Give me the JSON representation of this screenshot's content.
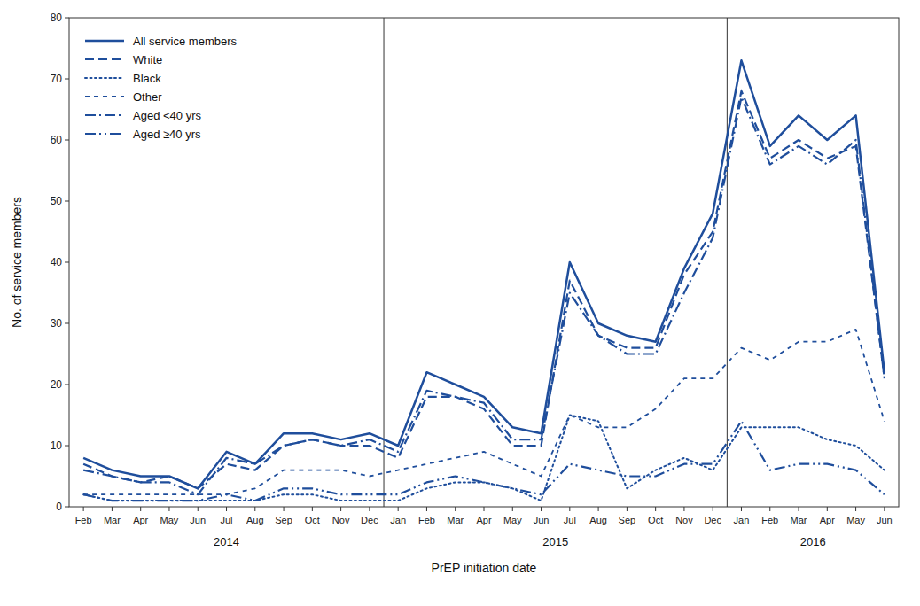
{
  "chart_data": {
    "type": "line",
    "xlabel": "PrEP initiation date",
    "ylabel": "No. of service members",
    "categories": [
      "Feb",
      "Mar",
      "Apr",
      "May",
      "Jun",
      "Jul",
      "Aug",
      "Sep",
      "Oct",
      "Nov",
      "Dec",
      "Jan",
      "Feb",
      "Mar",
      "Apr",
      "May",
      "Jun",
      "Jul",
      "Aug",
      "Sep",
      "Oct",
      "Nov",
      "Dec",
      "Jan",
      "Feb",
      "Mar",
      "Apr",
      "May",
      "Jun"
    ],
    "x_groups": [
      {
        "label": "2014",
        "count": 11
      },
      {
        "label": "2015",
        "count": 12
      },
      {
        "label": "2016",
        "count": 6
      }
    ],
    "ylim": [
      0,
      80
    ],
    "yticks": [
      0,
      10,
      20,
      30,
      40,
      50,
      60,
      70,
      80
    ],
    "grid": false,
    "legend": "upper-left",
    "color": "#1F4E9C",
    "series": [
      {
        "name": "All service members",
        "line_style": "solid",
        "values": [
          8,
          6,
          5,
          5,
          3,
          9,
          7,
          12,
          12,
          11,
          12,
          10,
          22,
          20,
          18,
          13,
          12,
          40,
          30,
          28,
          27,
          39,
          48,
          73,
          59,
          64,
          60,
          64,
          22
        ]
      },
      {
        "name": "White",
        "line_style": "long-dashed",
        "values": [
          7,
          5,
          4,
          5,
          3,
          7,
          6,
          10,
          11,
          10,
          10,
          8,
          18,
          18,
          16,
          10,
          10,
          37,
          28,
          26,
          26,
          38,
          45,
          68,
          57,
          60,
          57,
          59,
          21
        ]
      },
      {
        "name": "Black",
        "line_style": "dotted",
        "values": [
          2,
          1,
          1,
          1,
          1,
          1,
          1,
          2,
          2,
          1,
          1,
          1,
          3,
          4,
          4,
          3,
          1,
          15,
          14,
          3,
          6,
          8,
          6,
          13,
          13,
          13,
          11,
          10,
          6
        ]
      },
      {
        "name": "Other",
        "line_style": "dashed",
        "values": [
          2,
          2,
          2,
          2,
          2,
          2,
          3,
          6,
          6,
          6,
          5,
          6,
          7,
          8,
          9,
          7,
          5,
          15,
          13,
          13,
          16,
          21,
          21,
          26,
          24,
          27,
          27,
          29,
          14
        ]
      },
      {
        "name": "Aged <40 yrs",
        "line_style": "dash-dot",
        "values": [
          6,
          5,
          4,
          4,
          2,
          8,
          7,
          10,
          11,
          10,
          11,
          9,
          19,
          18,
          17,
          11,
          11,
          35,
          28,
          25,
          25,
          35,
          44,
          67,
          56,
          59,
          56,
          60,
          21
        ]
      },
      {
        "name": "Aged ≥40 yrs",
        "line_style": "dash-dot-dot",
        "values": [
          2,
          1,
          1,
          1,
          1,
          2,
          1,
          3,
          3,
          2,
          2,
          2,
          4,
          5,
          4,
          3,
          2,
          7,
          6,
          5,
          5,
          7,
          7,
          14,
          6,
          7,
          7,
          6,
          2
        ]
      }
    ]
  }
}
